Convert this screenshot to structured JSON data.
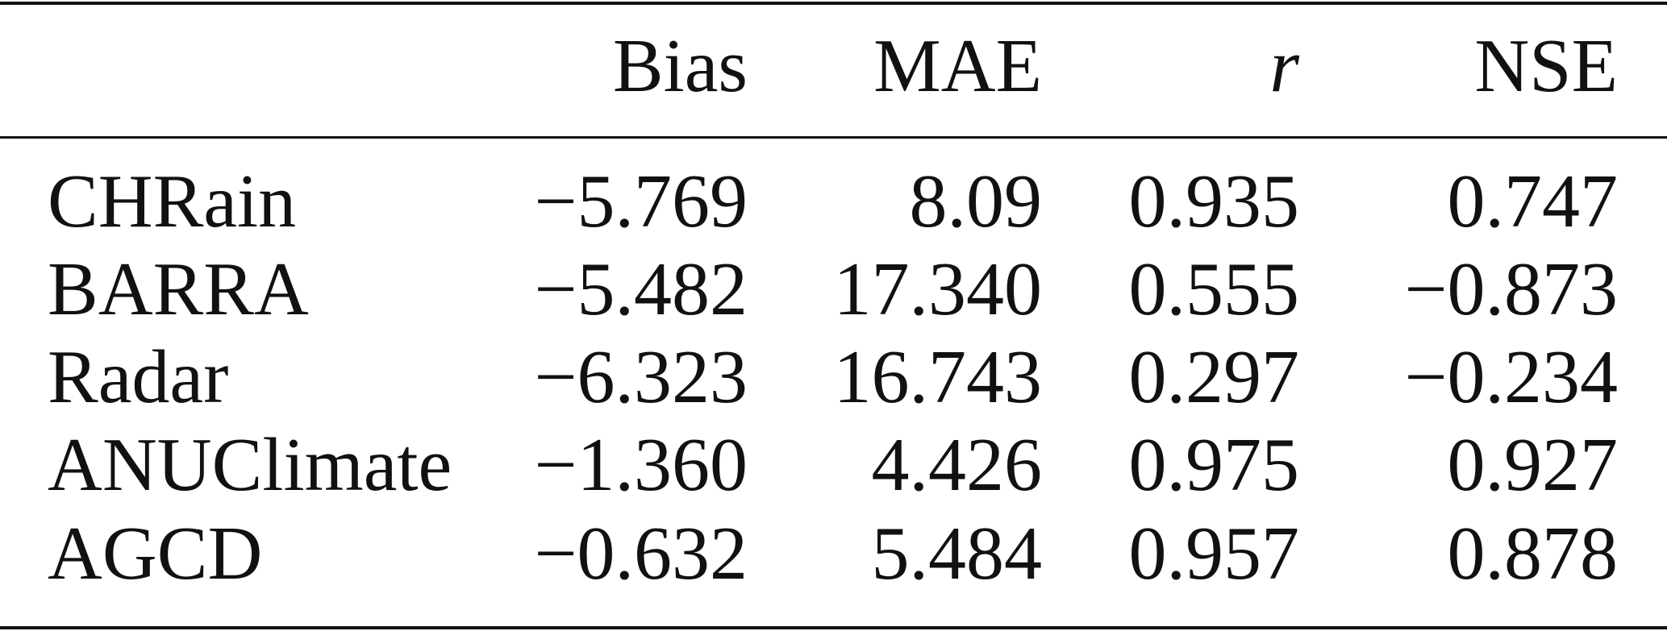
{
  "table": {
    "columns": [
      "Bias",
      "MAE",
      "r",
      "NSE"
    ],
    "rows": [
      [
        "CHRain",
        "−5.769",
        "8.09",
        "0.935",
        "0.747"
      ],
      [
        "BARRA",
        "−5.482",
        "17.340",
        "0.555",
        "−0.873"
      ],
      [
        "Radar",
        "−6.323",
        "16.743",
        "0.297",
        "−0.234"
      ],
      [
        "ANUClimate",
        "−1.360",
        "4.426",
        "0.975",
        "0.927"
      ],
      [
        "AGCD",
        "−0.632",
        "5.484",
        "0.957",
        "0.878"
      ]
    ]
  }
}
